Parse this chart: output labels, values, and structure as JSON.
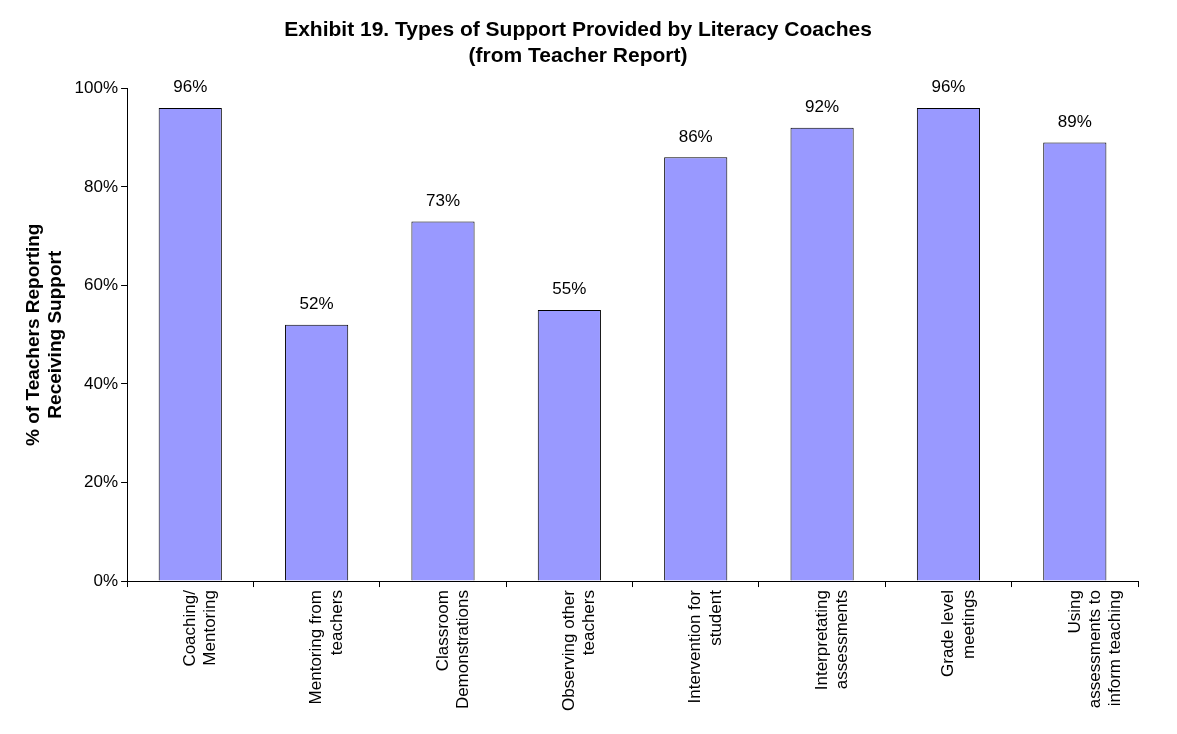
{
  "chart_data": {
    "type": "bar",
    "title": "Exhibit 19. Types of Support Provided by Literacy Coaches (from Teacher Report)",
    "ylabel": "% of Teachers Reporting Receiving Support",
    "categories": [
      "Coaching/ Mentoring",
      "Mentoring from teachers",
      "Classroom Demonstrations",
      "Observing other teachers",
      "Intervention for student",
      "Interpretating assessments",
      "Grade level meetings",
      "Using assessments to inform teaching"
    ],
    "values": [
      96,
      52,
      73,
      55,
      86,
      92,
      96,
      89
    ],
    "value_labels": [
      "96%",
      "52%",
      "73%",
      "55%",
      "86%",
      "92%",
      "96%",
      "89%"
    ],
    "color": "#9999ff",
    "ylim": [
      0,
      100
    ],
    "yticks": [
      {
        "value": 0,
        "label": "0%"
      },
      {
        "value": 20,
        "label": "20%"
      },
      {
        "value": 40,
        "label": "40%"
      },
      {
        "value": 60,
        "label": "60%"
      },
      {
        "value": 80,
        "label": "80%"
      },
      {
        "value": 100,
        "label": "100%"
      }
    ],
    "grid": false,
    "legend": false
  }
}
